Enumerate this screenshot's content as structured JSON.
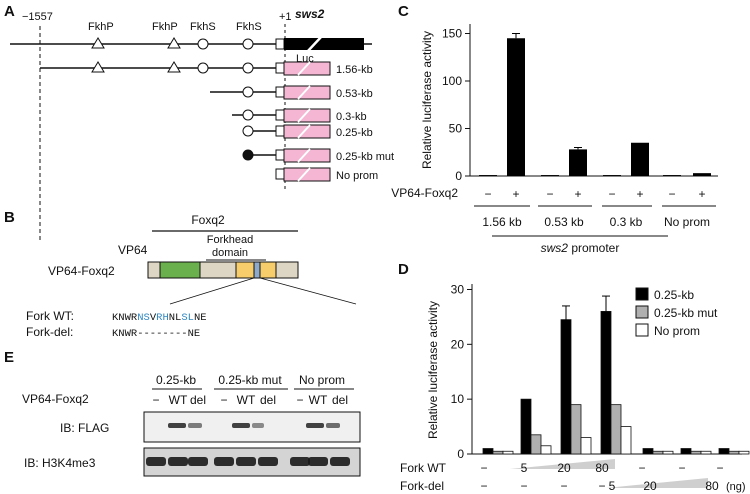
{
  "panels": {
    "A": "A",
    "B": "B",
    "C": "C",
    "D": "D",
    "E": "E"
  },
  "panelA": {
    "coord_start": "−1557",
    "coord_tss": "+1",
    "sites": [
      "FkhP",
      "FkhP",
      "FkhS",
      "FkhS"
    ],
    "gene": "sws2",
    "reporter": "Luc",
    "constructs": [
      "1.56-kb",
      "0.53-kb",
      "0.3-kb",
      "0.25-kb",
      "0.25-kb mut",
      "No prom"
    ]
  },
  "panelB": {
    "construct": "VP64-Foxq2",
    "vp64": "VP64",
    "foxq2": "Foxq2",
    "domain_line1": "Forkhead",
    "domain_line2": "domain",
    "wt_label": "Fork WT:",
    "del_label": "Fork-del:",
    "wt_seq": [
      {
        "t": "KNWR",
        "c": "#111111"
      },
      {
        "t": "NS",
        "c": "#2e86c1"
      },
      {
        "t": "V",
        "c": "#111111"
      },
      {
        "t": "RH",
        "c": "#2e86c1"
      },
      {
        "t": "NL",
        "c": "#111111"
      },
      {
        "t": "SL",
        "c": "#2e86c1"
      },
      {
        "t": "NE",
        "c": "#111111"
      }
    ],
    "del_seq": "KNWR--------NE"
  },
  "chart_data": [
    {
      "panel": "C",
      "type": "bar",
      "ylabel": "Relative luciferase activity",
      "ylim": [
        0,
        160
      ],
      "yticks": [
        0,
        50,
        100,
        150
      ],
      "row_label": "VP64-Foxq2",
      "categories": [
        "−",
        "+",
        "−",
        "+",
        "−",
        "+",
        "−",
        "+"
      ],
      "values": [
        1,
        145,
        1,
        28,
        1,
        35,
        1,
        3
      ],
      "errors": [
        0,
        5,
        0,
        2,
        0,
        0,
        0,
        0
      ],
      "groups": [
        "1.56 kb",
        "0.53 kb",
        "0.3 kb",
        "No prom"
      ],
      "group_caption": "sws2",
      "group_caption_suffix": " promoter"
    },
    {
      "panel": "D",
      "type": "bar",
      "ylabel": "Relative luciferase activity",
      "ylim": [
        0,
        31
      ],
      "yticks": [
        0,
        10,
        20,
        30
      ],
      "series": [
        {
          "name": "0.25-kb",
          "color": "#000000",
          "values": [
            1,
            10,
            24.5,
            26,
            1,
            1,
            1
          ]
        },
        {
          "name": "0.25-kb mut",
          "color": "#b0b0b0",
          "values": [
            0.5,
            3.5,
            9,
            9,
            0.5,
            0.5,
            0.5
          ]
        },
        {
          "name": "No prom",
          "color": "#ffffff",
          "values": [
            0.5,
            1.5,
            3,
            5,
            0.5,
            0.5,
            0.5
          ]
        }
      ],
      "errors_first": [
        0,
        0,
        2.5,
        2.8,
        0,
        0,
        0
      ],
      "fork_wt_label": "Fork WT",
      "fork_del_label": "Fork-del",
      "fork_wt": [
        "−",
        "5",
        "20",
        "80",
        "−",
        "−",
        "−"
      ],
      "fork_del": [
        "−",
        "−",
        "−",
        "−",
        "5",
        "20",
        "80"
      ],
      "unit": "(ng)"
    }
  ],
  "panelE": {
    "groups": [
      "0.25-kb",
      "0.25-kb mut",
      "No prom"
    ],
    "row_label": "VP64-Foxq2",
    "lanes": [
      "−",
      "WT",
      "del",
      "−",
      "WT",
      "del",
      "−",
      "WT",
      "del"
    ],
    "blots": [
      "IB: FLAG",
      "IB: H3K4me3"
    ]
  }
}
